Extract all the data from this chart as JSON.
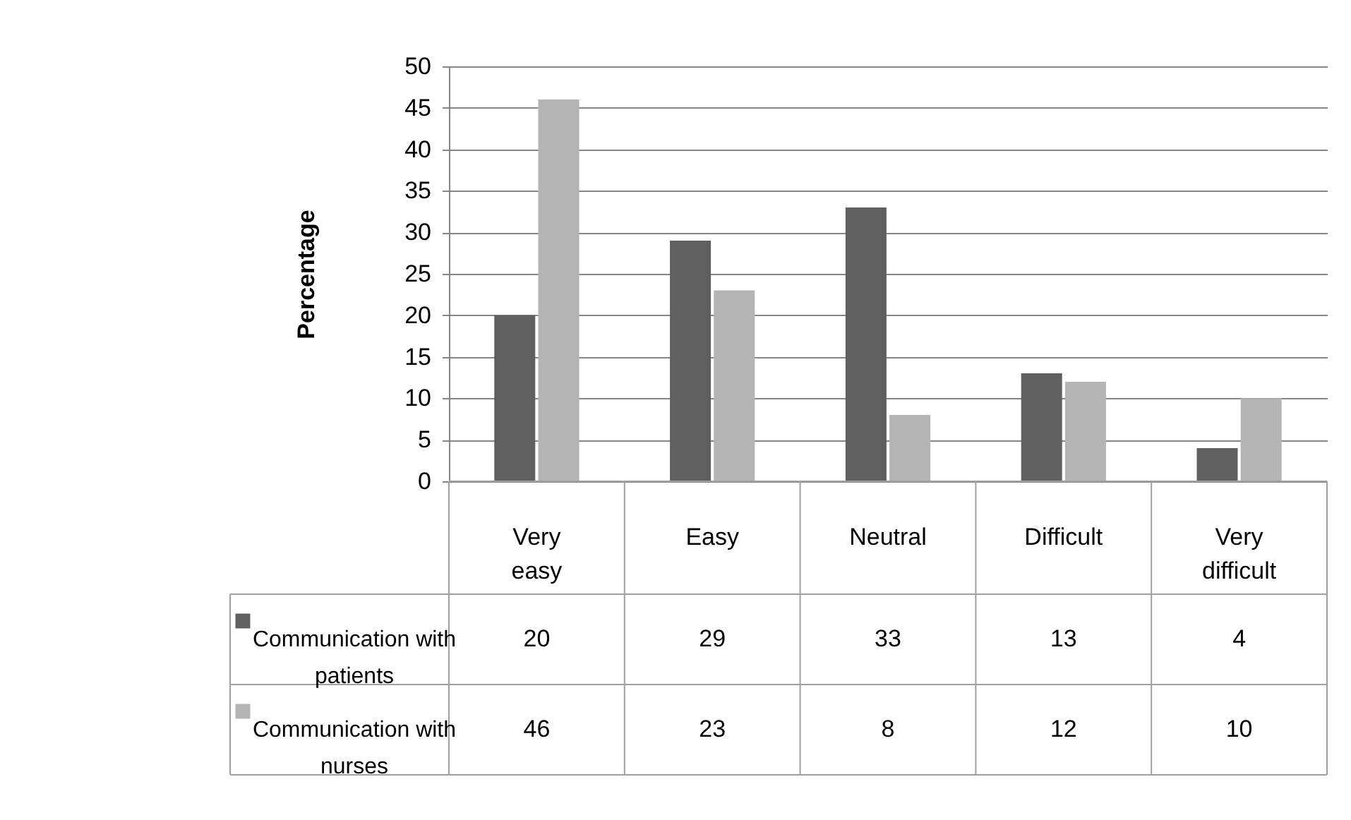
{
  "chart_data": {
    "type": "bar",
    "ylabel": "Percentage",
    "categories": [
      "Very easy",
      "Easy",
      "Neutral",
      "Difficult",
      "Very difficult"
    ],
    "series": [
      {
        "name": "Communication with patients",
        "color": "#5f5f5f",
        "values": [
          20,
          29,
          33,
          13,
          4
        ]
      },
      {
        "name": "Communication with nurses",
        "color": "#b4b4b4",
        "values": [
          46,
          23,
          8,
          12,
          10
        ]
      }
    ],
    "ylim": [
      0,
      50
    ],
    "yticks": [
      0,
      5,
      10,
      15,
      20,
      25,
      30,
      35,
      40,
      45,
      50
    ],
    "grid": "y",
    "legend": "bottom",
    "data_labels": true
  }
}
